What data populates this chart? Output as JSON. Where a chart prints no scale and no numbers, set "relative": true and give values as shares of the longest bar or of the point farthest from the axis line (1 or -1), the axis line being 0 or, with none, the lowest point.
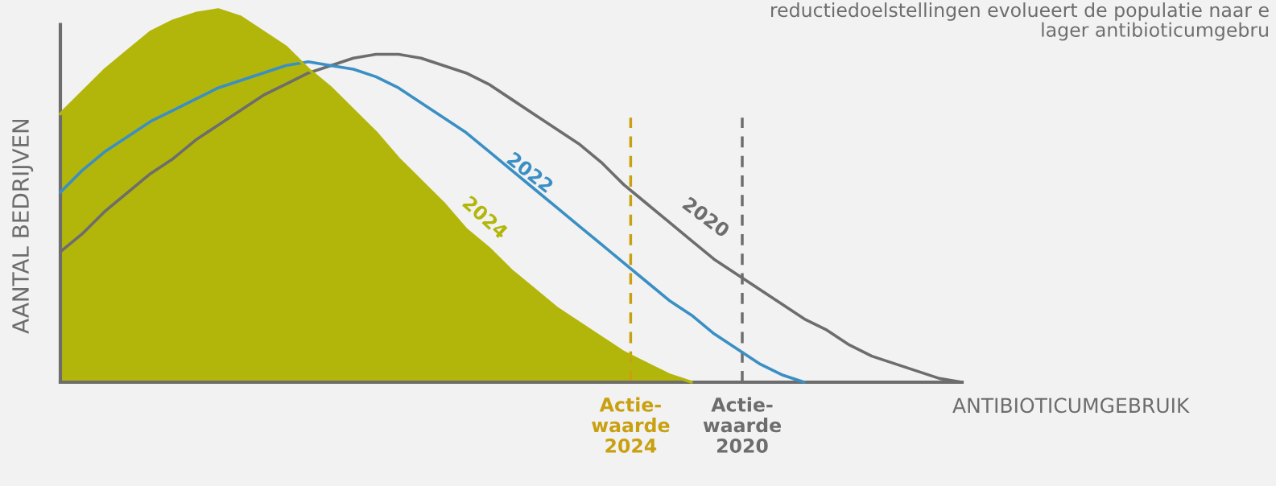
{
  "chart_data": {
    "type": "line",
    "relative": true,
    "ylabel": "AANTAL BEDRIJVEN",
    "xlabel": "ANTIBIOTICUMGEBRUIK",
    "annotations": [
      "reductiedoelstellingen evolueert de populatie naar e\nlager antibioticumgebru",
      "Actie-\nwaarde\n2024",
      "Actie-\nwaarde\n2020"
    ],
    "categories": [
      null,
      null,
      null,
      null,
      null,
      null,
      null,
      null,
      null,
      null,
      null,
      null,
      null,
      null,
      null,
      null,
      null,
      null,
      null,
      null,
      null,
      null,
      null,
      null,
      null,
      null,
      null,
      null,
      null,
      null,
      null,
      null,
      null,
      null,
      null,
      null,
      null,
      null,
      null,
      null,
      null
    ],
    "series": [
      {
        "name": "2020",
        "type": "line",
        "color": "#6d6d6d",
        "values": [
          0.35,
          0.4,
          0.46,
          0.51,
          0.56,
          0.6,
          0.65,
          0.69,
          0.73,
          0.77,
          0.8,
          0.83,
          0.85,
          0.87,
          0.88,
          0.88,
          0.87,
          0.85,
          0.83,
          0.8,
          0.76,
          0.72,
          0.68,
          0.64,
          0.59,
          0.53,
          0.48,
          0.43,
          0.38,
          0.33,
          0.29,
          0.25,
          0.21,
          0.17,
          0.14,
          0.1,
          0.07,
          0.05,
          0.03,
          0.01,
          0
        ]
      },
      {
        "name": "2022",
        "type": "line",
        "color": "#3a8fc4",
        "values": [
          0.51,
          0.57,
          0.62,
          0.66,
          0.7,
          0.73,
          0.76,
          0.79,
          0.81,
          0.83,
          0.85,
          0.86,
          0.85,
          0.84,
          0.82,
          0.79,
          0.75,
          0.71,
          0.67,
          0.62,
          0.57,
          0.52,
          0.47,
          0.42,
          0.37,
          0.32,
          0.27,
          0.22,
          0.18,
          0.13,
          0.09,
          0.05,
          0.02,
          0,
          null,
          null,
          null,
          null,
          null,
          null,
          null
        ]
      },
      {
        "name": "2024",
        "type": "area",
        "color": "#b3b60a",
        "values": [
          0.72,
          0.78,
          0.84,
          0.89,
          0.94,
          0.97,
          0.99,
          1,
          0.98,
          0.94,
          0.9,
          0.84,
          0.79,
          0.73,
          0.67,
          0.6,
          0.54,
          0.48,
          0.41,
          0.36,
          0.3,
          0.25,
          0.2,
          0.16,
          0.12,
          0.08,
          0.05,
          0.02,
          0,
          null,
          null,
          null,
          null,
          null,
          null,
          null,
          null,
          null,
          null,
          null,
          null
        ]
      }
    ]
  }
}
